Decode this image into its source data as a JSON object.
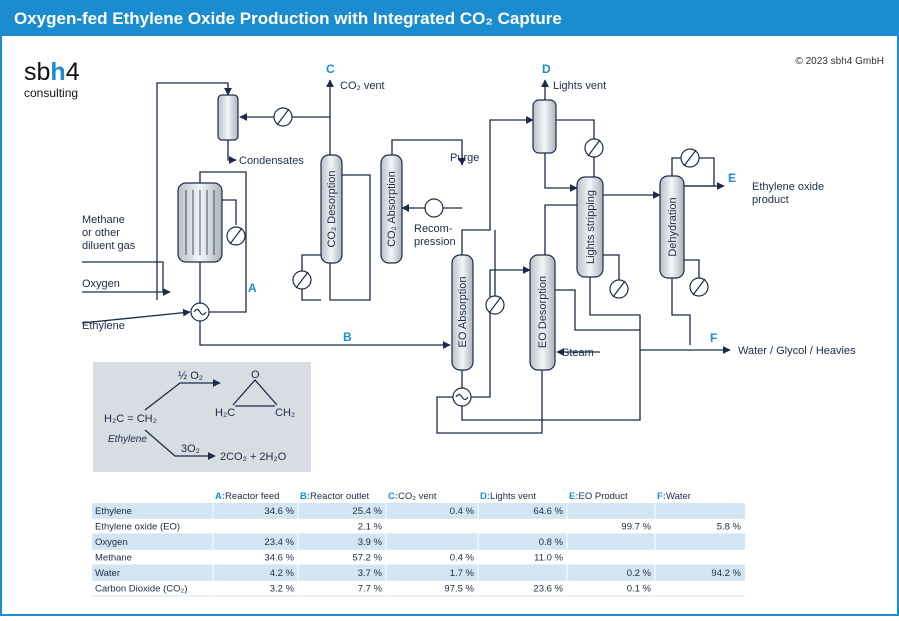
{
  "header": {
    "title": "Oxygen-fed Ethylene Oxide Production with Integrated CO₂ Capture"
  },
  "logo": {
    "parts": [
      "sb",
      "h",
      "4"
    ],
    "tagline": "consulting"
  },
  "copyright": "© 2023 sbh4 GmbH",
  "diagram": {
    "points": [
      "A",
      "B",
      "C",
      "D",
      "E",
      "F"
    ],
    "streams": {
      "co2_vent": "CO₂ vent",
      "lights_vent": "Lights vent",
      "condensates": "Condensates",
      "purge": "Purge",
      "recompression": [
        "Recom-",
        "pression"
      ],
      "diluent": [
        "Methane",
        "or other",
        "diluent gas"
      ],
      "oxygen": "Oxygen",
      "ethylene": "Ethylene",
      "steam": "Steam",
      "eo_product": [
        "Ethylene oxide",
        "product"
      ],
      "water": "Water / Glycol / Heavies"
    },
    "units": {
      "co2_desorption": "CO₂ Desorption",
      "co2_absorption": "CO₂ Absorption",
      "eo_absorption": "EO Absorption",
      "eo_desorption": "EO Desorption",
      "lights_stripping": "Lights stripping",
      "dehydration": "Dehydration"
    }
  },
  "reaction": {
    "half_o2": "½ O₂",
    "ethylene_formula": "H₂C = CH₂",
    "ethylene_name": "Ethylene",
    "oxide_o": "O",
    "oxide_left": "H₂C",
    "oxide_right": "CH₂",
    "three_o2": "3O₂",
    "products": "2CO₂ + 2H₂O"
  },
  "table": {
    "columns": [
      {
        "letter": "A:",
        "name": "Reactor feed"
      },
      {
        "letter": "B:",
        "name": "Reactor outlet"
      },
      {
        "letter": "C:",
        "name": "CO₂ vent"
      },
      {
        "letter": "D:",
        "name": "Lights vent"
      },
      {
        "letter": "E:",
        "name": "EO Product"
      },
      {
        "letter": "F:",
        "name": "Water"
      }
    ],
    "rows": [
      {
        "name": "Ethylene",
        "values": [
          "34.6 %",
          "25.4 %",
          "0.4 %",
          "64.6 %",
          null,
          null
        ]
      },
      {
        "name": "Ethylene oxide (EO)",
        "values": [
          null,
          "2.1 %",
          null,
          null,
          "99.7 %",
          "5.8 %"
        ]
      },
      {
        "name": "Oxygen",
        "values": [
          "23.4 %",
          "3.9 %",
          null,
          "0.8 %",
          null,
          null
        ]
      },
      {
        "name": "Methane",
        "values": [
          "34.6 %",
          "57.2 %",
          "0.4 %",
          "11.0 %",
          null,
          null
        ]
      },
      {
        "name": "Water",
        "values": [
          "4.2 %",
          "3.7 %",
          "1.7 %",
          null,
          "0.2 %",
          "94.2 %"
        ]
      },
      {
        "name": "Carbon Dioxide (CO₂)",
        "values": [
          "3.2 %",
          "7.7 %",
          "97.5 %",
          "23.6 %",
          "0.1 %",
          null
        ]
      }
    ]
  }
}
